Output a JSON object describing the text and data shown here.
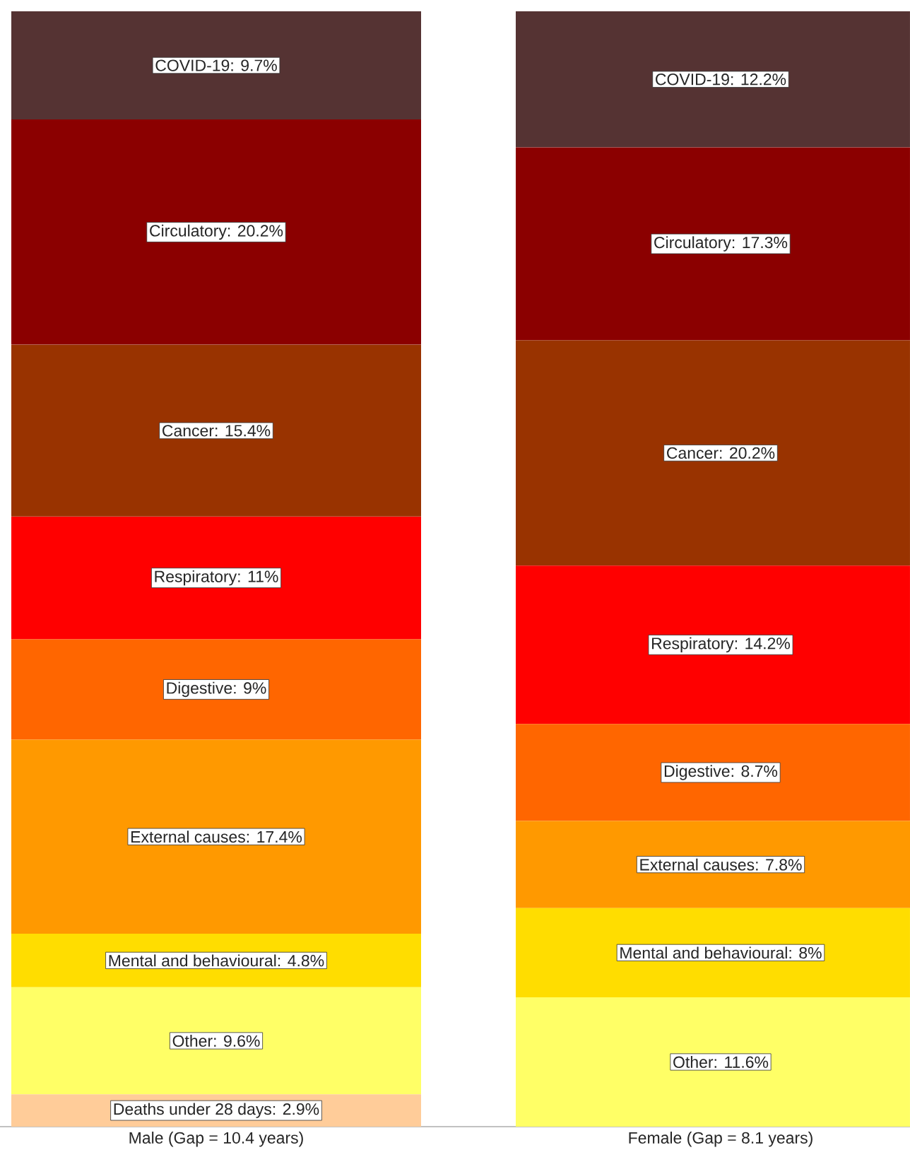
{
  "chart_data": {
    "type": "bar",
    "stacked": true,
    "categories": [
      "Male (Gap = 10.4 years)",
      "Female (Gap = 8.1 years)"
    ],
    "tick_labels": "x",
    "series": [
      {
        "color": "#ffcc99",
        "values": [
          2.9,
          null
        ],
        "value_labels": [
          "Deaths under 28 days: 2.9%",
          null
        ]
      },
      {
        "color": "#ffff66",
        "values": [
          9.6,
          11.6
        ],
        "value_labels": [
          "Other: 9.6%",
          "Other: 11.6%"
        ]
      },
      {
        "color": "#ffdd00",
        "values": [
          4.8,
          8
        ],
        "value_labels": [
          "Mental and behavioural: 4.8%",
          "Mental and behavioural: 8%"
        ]
      },
      {
        "color": "#ff9900",
        "values": [
          17.4,
          7.8
        ],
        "value_labels": [
          "External causes: 17.4%",
          "External causes: 7.8%"
        ]
      },
      {
        "color": "#ff6600",
        "values": [
          9,
          8.7
        ],
        "value_labels": [
          "Digestive: 9%",
          "Digestive: 8.7%"
        ]
      },
      {
        "color": "#ff0000",
        "values": [
          11,
          14.2
        ],
        "value_labels": [
          "Respiratory: 11%",
          "Respiratory: 14.2%"
        ]
      },
      {
        "color": "#993300",
        "values": [
          15.4,
          20.2
        ],
        "value_labels": [
          "Cancer: 15.4%",
          "Cancer: 20.2%"
        ]
      },
      {
        "color": "#8b0000",
        "values": [
          20.2,
          17.3
        ],
        "value_labels": [
          "Circulatory: 20.2%",
          "Circulatory: 17.3%"
        ]
      },
      {
        "color": "#553333",
        "values": [
          9.7,
          12.2
        ],
        "value_labels": [
          "COVID-19: 9.7%",
          "COVID-19: 12.2%"
        ]
      }
    ]
  }
}
